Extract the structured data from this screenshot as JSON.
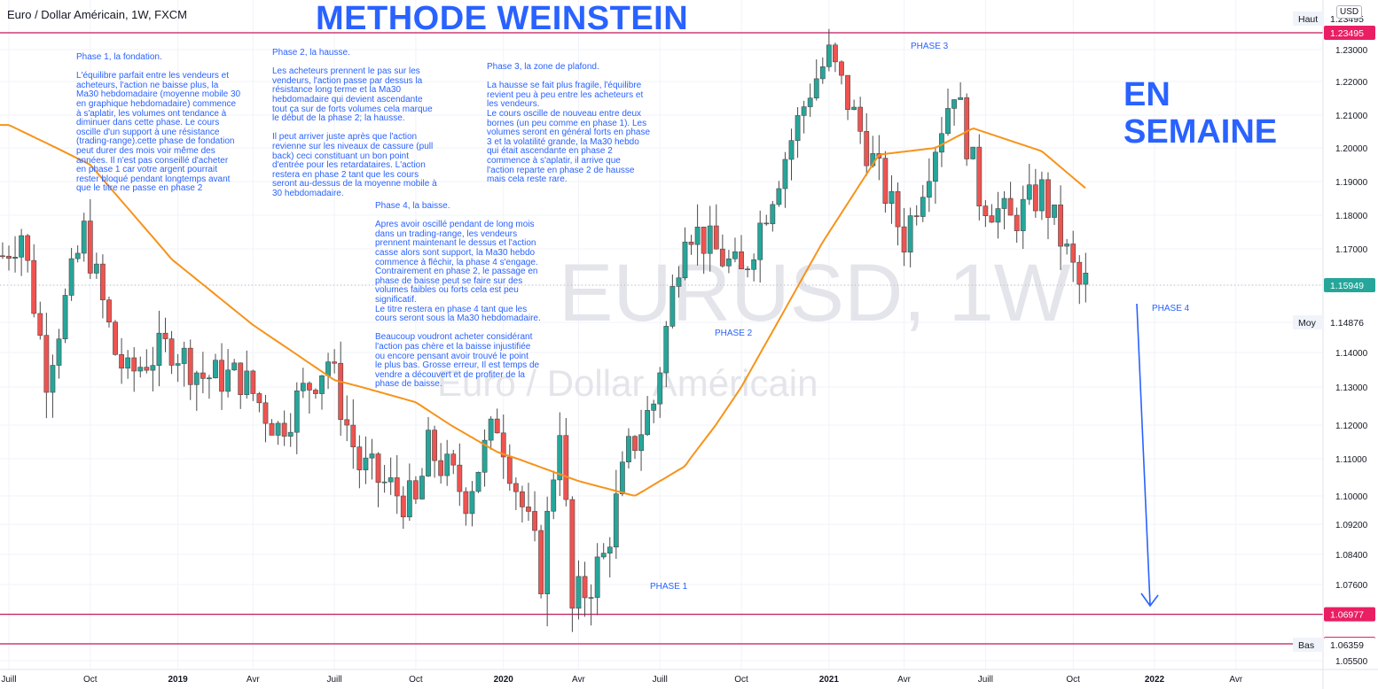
{
  "header": {
    "symbol_title": "Euro / Dollar Américain, 1W, FXCM",
    "main_title": "METHODE WEINSTEIN",
    "en_semaine": "EN\nSEMAINE",
    "currency_button": "USD"
  },
  "watermark": {
    "symbol": "EURUSD, 1W",
    "name": "Euro / Dollar Américain"
  },
  "notes": {
    "phase1": "Phase 1, la fondation.\n\nL'équilibre parfait entre les vendeurs et\nacheteurs, l'action ne baisse plus, la\nMa30 hebdomadaire (moyenne mobile 30\nen graphique hebdomadaire) commence\nà s'aplatir, les volumes ont tendance à\ndiminuer dans cette phase. Le cours\noscille d'un support à une résistance\n(trading-range).cette phase de fondation\npeut durer des mois voir même des\nannées. Il n'est pas conseillé d'acheter\nen phase 1 car votre argent pourrait\nrester bloqué pendant longtemps avant\nque le titre ne passe en phase 2",
    "phase2": "Phase 2, la hausse.\n\nLes acheteurs prennent le pas sur les\nvendeurs, l'action passe par dessus la\nrésistance long terme et la Ma30\nhebdomadaire qui devient ascendante\ntout ça sur de forts volumes cela marque\nle début de la phase 2; la hausse.\n\nIl peut arriver juste après que l'action\nrevienne sur les niveaux de cassure (pull\nback) ceci constituant un bon point\nd'entrée pour les retardataires. L'action\nrestera en phase 2 tant que les cours\nseront au-dessus de la moyenne mobile à\n30 hebdomadaire.",
    "phase3": "Phase 3, la zone de plafond.\n\nLa hausse se fait plus fragile, l'équilibre\nrevient peu à peu entre les acheteurs et\nles vendeurs.\nLe cours oscille de nouveau entre deux\nbornes (un peu comme en phase 1). Les\nvolumes seront en général forts en phase\n3 et la volatilité grande, la Ma30 hebdo\nqui était ascendante en phase 2\ncommence à s'aplatir, il arrive que\nl'action reparte en phase 2 de hausse\nmais cela reste rare.",
    "phase4": "Phase 4, la baisse.\n\nApres avoir oscillé pendant de long mois\ndans un trading-range, les vendeurs\nprennent maintenant le dessus et l'action\ncasse alors sont support, la Ma30 hebdo\ncommence à fléchir, la phase 4 s'engage.\nContrairement en phase 2, le passage en\nphase de baisse peut se faire sur des\nvolumes faibles ou forts cela est peu\nsignificatif.\nLe titre restera en phase 4 tant que les\ncours seront sous la Ma30 hebdomadaire.\n\nBeaucoup voudront acheter considérant\nl'action pas chère et la baisse injustifiée\nou encore pensant avoir trouvé le point\nle plus bas. Grosse erreur, Il est temps de\nvendre a découvert et de profiter de la\nphase de baisse."
  },
  "phase_labels": {
    "phase1": "PHASE 1",
    "phase2": "PHASE 2",
    "phase3": "PHASE 3",
    "phase4": "PHASE 4"
  },
  "colors": {
    "up_candle": "#26a69a",
    "down_candle": "#ef5350",
    "ma30": "#f7931a",
    "annotation_blue": "#2962ff",
    "level_line": "#c2185b",
    "grid": "#f0f3fa",
    "last_price_badge": "#26a69a",
    "level_badge": "#e91e63"
  },
  "chart_data": {
    "type": "candlestick",
    "symbol": "Euro / Dollar Américain, 1W, FXCM",
    "ylim": [
      1.055,
      1.237
    ],
    "y_ticks": [
      "1.05500",
      "1.06359",
      "1.07600",
      "1.08400",
      "1.09200",
      "1.10000",
      "1.11000",
      "1.12000",
      "1.13000",
      "1.14000",
      "1.14876",
      "1.15949",
      "1.17000",
      "1.18000",
      "1.19000",
      "1.20000",
      "1.21000",
      "1.22000",
      "1.23000",
      "1.23495",
      "1.23495"
    ],
    "x_ticks": [
      "Juill",
      "Oct",
      "2019",
      "Avr",
      "Juill",
      "Oct",
      "2020",
      "Avr",
      "Juill",
      "Oct",
      "2021",
      "Avr",
      "Juill",
      "Oct",
      "2022",
      "Avr"
    ],
    "price_labels": [
      {
        "label": "Haut",
        "value": "1.23495"
      },
      {
        "label": "",
        "value": "1.23495"
      },
      {
        "label": "",
        "value": "1.15949"
      },
      {
        "label": "Moy",
        "value": "1.14876"
      },
      {
        "label": "",
        "value": "1.06977"
      },
      {
        "label": "",
        "value": "1.06359"
      },
      {
        "label": "Bas",
        "value": "1.06359"
      }
    ],
    "levels": [
      1.23495,
      1.06977,
      1.06359
    ],
    "ma30_label": "Ma30",
    "ma30_anchors": [
      [
        "2018-07-02",
        1.207
      ],
      [
        "2018-10-01",
        1.195
      ],
      [
        "2018-12-31",
        1.167
      ],
      [
        "2019-04-01",
        1.148
      ],
      [
        "2019-07-01",
        1.132
      ],
      [
        "2019-09-30",
        1.126
      ],
      [
        "2019-12-30",
        1.112
      ],
      [
        "2020-03-30",
        1.104
      ],
      [
        "2020-06-01",
        1.1
      ],
      [
        "2020-07-27",
        1.108
      ],
      [
        "2020-09-28",
        1.13
      ],
      [
        "2020-12-28",
        1.172
      ],
      [
        "2021-03-01",
        1.198
      ],
      [
        "2021-05-03",
        1.2
      ],
      [
        "2021-06-14",
        1.206
      ],
      [
        "2021-08-30",
        1.199
      ],
      [
        "2021-10-18",
        1.188
      ]
    ],
    "weekly_closes_anchors": [
      [
        "2018-06-25",
        1.168
      ],
      [
        "2018-07-16",
        1.175
      ],
      [
        "2018-08-13",
        1.134
      ],
      [
        "2018-09-24",
        1.175
      ],
      [
        "2018-10-29",
        1.14
      ],
      [
        "2018-11-12",
        1.133
      ],
      [
        "2018-12-03",
        1.138
      ],
      [
        "2018-12-31",
        1.142
      ],
      [
        "2019-02-04",
        1.133
      ],
      [
        "2019-03-18",
        1.133
      ],
      [
        "2019-04-29",
        1.119
      ],
      [
        "2019-06-24",
        1.138
      ],
      [
        "2019-07-29",
        1.108
      ],
      [
        "2019-09-30",
        1.097
      ],
      [
        "2019-10-14",
        1.113
      ],
      [
        "2019-11-25",
        1.1
      ],
      [
        "2019-12-30",
        1.121
      ],
      [
        "2020-02-17",
        1.079
      ],
      [
        "2020-03-09",
        1.121
      ],
      [
        "2020-03-23",
        1.07
      ],
      [
        "2020-04-27",
        1.083
      ],
      [
        "2020-05-25",
        1.112
      ],
      [
        "2020-06-22",
        1.126
      ],
      [
        "2020-07-27",
        1.178
      ],
      [
        "2020-09-28",
        1.162
      ],
      [
        "2020-12-14",
        1.218
      ],
      [
        "2021-01-04",
        1.228
      ],
      [
        "2021-03-29",
        1.173
      ],
      [
        "2021-05-24",
        1.219
      ],
      [
        "2021-06-21",
        1.186
      ],
      [
        "2021-07-26",
        1.178
      ],
      [
        "2021-08-30",
        1.187
      ],
      [
        "2021-10-11",
        1.159
      ],
      [
        "2021-10-18",
        1.16
      ]
    ],
    "last_price": 1.15949,
    "annotations": [
      "PHASE 1",
      "PHASE 2",
      "PHASE 3",
      "PHASE 4",
      "METHODE WEINSTEIN",
      "EN SEMAINE"
    ],
    "grid": true
  }
}
